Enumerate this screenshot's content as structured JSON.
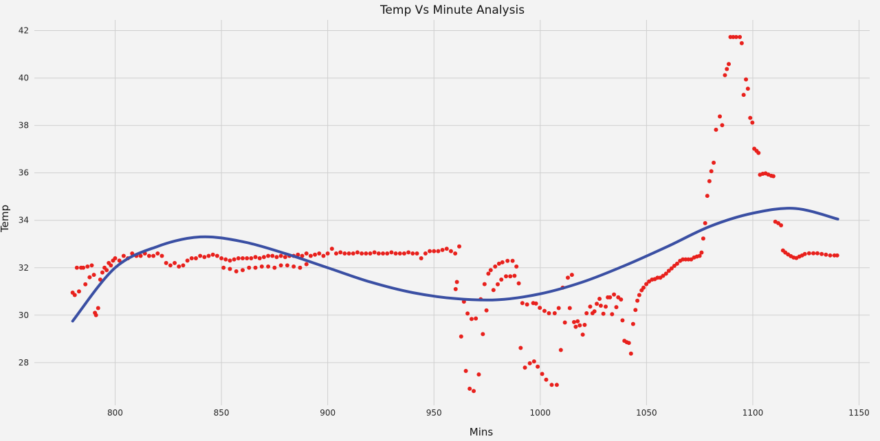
{
  "chart_data": {
    "type": "scatter",
    "title": "Temp Vs Minute Analysis",
    "xlabel": "Mins",
    "ylabel": "Temp",
    "xlim": [
      762,
      1155
    ],
    "ylim": [
      26.2,
      42.45
    ],
    "xticks": [
      800,
      850,
      900,
      950,
      1000,
      1050,
      1100,
      1150
    ],
    "yticks": [
      28,
      30,
      32,
      34,
      36,
      38,
      40,
      42
    ],
    "grid": true,
    "background": "#f3f3f3",
    "series": [
      {
        "kind": "scatter",
        "color": "#e8201c",
        "x": [
          780,
          781,
          782,
          783,
          784,
          785,
          786,
          787,
          788,
          789,
          790,
          790.5,
          791,
          792,
          793,
          794,
          795,
          796,
          797,
          798,
          799,
          800,
          802,
          804,
          806,
          808,
          810,
          812,
          814,
          816,
          818,
          820,
          822,
          824,
          826,
          828,
          830,
          832,
          834,
          836,
          838,
          840,
          842,
          844,
          846,
          848,
          850,
          852,
          854,
          856,
          858,
          860,
          862,
          864,
          866,
          868,
          870,
          872,
          874,
          876,
          878,
          880,
          882,
          884,
          886,
          888,
          890,
          851,
          854,
          857,
          860,
          863,
          866,
          869,
          872,
          875,
          878,
          881,
          884,
          887,
          890,
          892,
          894,
          896,
          898,
          900,
          902,
          904,
          906,
          908,
          910,
          912,
          914,
          916,
          918,
          920,
          922,
          924,
          926,
          928,
          930,
          932,
          934,
          936,
          938,
          940,
          942,
          944,
          946,
          948,
          950,
          952,
          954,
          956,
          958,
          960,
          960.2,
          960.8,
          961.9,
          962.8,
          964.1,
          965,
          965.8,
          966.8,
          967.7,
          968.7,
          969.7,
          971.1,
          972,
          973,
          973.8,
          974.7,
          975.6,
          976.7,
          978,
          978.8,
          980,
          980.6,
          981.7,
          982.2,
          983.9,
          984.6,
          985.9,
          987,
          987.9,
          988.8,
          989.9,
          990.8,
          991.6,
          992.8,
          993.8,
          995.1,
          996.7,
          997.1,
          998,
          998.8,
          999.8,
          1000.9,
          1002,
          1002.8,
          1004.1,
          1005.4,
          1006.8,
          1007.8,
          1008.7,
          1009.7,
          1010.6,
          1011.6,
          1013,
          1013.9,
          1014.9,
          1015.9,
          1016.7,
          1017.6,
          1018.6,
          1020,
          1020.9,
          1021.8,
          1023.5,
          1024.6,
          1025.5,
          1026.6,
          1027.9,
          1028.5,
          1029.7,
          1030.8,
          1031.8,
          1032.8,
          1033.8,
          1034.7,
          1035.8,
          1036.7,
          1038,
          1038.7,
          1039.6,
          1040.7,
          1041.7,
          1042.7,
          1043.7,
          1044.8,
          1045.7,
          1046.6,
          1047.7,
          1048.6,
          1049.9,
          1051.2,
          1052.6,
          1053.9,
          1055.2,
          1056.5,
          1057.8,
          1059.2,
          1060.5,
          1061.8,
          1063.1,
          1064.4,
          1065.8,
          1067.1,
          1068.4,
          1069.7,
          1071,
          1072.4,
          1073.7,
          1075,
          1075.9,
          1076.7,
          1077.6,
          1078.6,
          1079.6,
          1080.5,
          1081.6,
          1082.7,
          1084.5,
          1085.6,
          1086.9,
          1087.8,
          1088.7,
          1089.5,
          1090.8,
          1092.2,
          1093.9,
          1094.8,
          1095.7,
          1096.8,
          1097.7,
          1098.8,
          1099.8,
          1100.7,
          1101.8,
          1102.7,
          1103.4,
          1104.7,
          1106,
          1107.3,
          1108.7,
          1109.7,
          1110.6,
          1112,
          1113.3,
          1114.2,
          1115.3,
          1116.6,
          1117.9,
          1119.2,
          1120.5,
          1121.9,
          1123.2,
          1124.5,
          1126.5,
          1128.5,
          1130.4,
          1132.4,
          1134.4,
          1136.4,
          1138.4,
          1139.7
        ],
        "y": [
          30.95,
          30.85,
          32.0,
          31.0,
          32.0,
          32.0,
          31.3,
          32.05,
          31.6,
          32.1,
          31.7,
          30.1,
          30.0,
          30.3,
          31.5,
          31.8,
          32.0,
          31.9,
          32.2,
          32.1,
          32.3,
          32.4,
          32.3,
          32.5,
          32.4,
          32.6,
          32.5,
          32.5,
          32.6,
          32.5,
          32.5,
          32.6,
          32.5,
          32.2,
          32.1,
          32.2,
          32.05,
          32.1,
          32.3,
          32.4,
          32.4,
          32.5,
          32.45,
          32.5,
          32.55,
          32.5,
          32.4,
          32.35,
          32.3,
          32.35,
          32.4,
          32.4,
          32.4,
          32.4,
          32.45,
          32.4,
          32.45,
          32.5,
          32.5,
          32.45,
          32.5,
          32.45,
          32.5,
          32.5,
          32.55,
          32.5,
          32.6,
          32.0,
          31.95,
          31.85,
          31.9,
          32.0,
          32.0,
          32.05,
          32.05,
          32.0,
          32.1,
          32.1,
          32.05,
          32.0,
          32.15,
          32.5,
          32.55,
          32.6,
          32.5,
          32.6,
          32.8,
          32.6,
          32.65,
          32.6,
          32.6,
          32.6,
          32.65,
          32.6,
          32.6,
          32.6,
          32.65,
          32.6,
          32.6,
          32.6,
          32.65,
          32.6,
          32.6,
          32.6,
          32.65,
          32.6,
          32.6,
          32.4,
          32.6,
          32.7,
          32.7,
          32.7,
          32.75,
          32.8,
          32.7,
          32.6,
          31.1,
          31.4,
          32.9,
          29.1,
          30.57,
          27.65,
          30.07,
          26.9,
          29.84,
          26.8,
          29.86,
          27.5,
          30.67,
          29.2,
          31.31,
          30.2,
          31.75,
          31.9,
          31.06,
          32.05,
          31.3,
          32.17,
          31.5,
          32.23,
          31.64,
          32.29,
          31.64,
          32.29,
          31.66,
          32.05,
          31.34,
          28.62,
          30.51,
          27.79,
          30.45,
          27.97,
          30.51,
          28.05,
          30.49,
          27.83,
          30.31,
          27.52,
          30.18,
          27.28,
          30.08,
          27.06,
          30.08,
          27.06,
          30.3,
          28.53,
          31.16,
          29.69,
          31.58,
          30.3,
          31.7,
          29.71,
          29.51,
          29.74,
          29.57,
          29.18,
          29.59,
          30.08,
          30.36,
          30.08,
          30.16,
          30.48,
          30.69,
          30.4,
          30.06,
          30.36,
          30.75,
          30.75,
          30.04,
          30.87,
          30.34,
          30.75,
          30.66,
          29.78,
          28.92,
          28.86,
          28.83,
          28.38,
          29.63,
          30.22,
          30.61,
          30.85,
          31.05,
          31.16,
          31.31,
          31.42,
          31.5,
          31.52,
          31.58,
          31.58,
          31.66,
          31.75,
          31.87,
          31.97,
          32.08,
          32.17,
          32.29,
          32.35,
          32.35,
          32.35,
          32.35,
          32.43,
          32.47,
          32.5,
          32.64,
          33.23,
          33.88,
          35.03,
          35.65,
          36.07,
          36.43,
          37.82,
          38.38,
          38.01,
          40.12,
          40.38,
          40.59,
          41.73,
          41.73,
          41.73,
          41.73,
          41.47,
          39.29,
          39.94,
          39.55,
          38.32,
          38.12,
          37.02,
          36.93,
          36.84,
          35.92,
          35.96,
          35.98,
          35.93,
          35.88,
          35.86,
          33.94,
          33.88,
          33.79,
          32.73,
          32.64,
          32.56,
          32.49,
          32.43,
          32.41,
          32.47,
          32.52,
          32.58,
          32.61,
          32.61,
          32.61,
          32.58,
          32.55,
          32.52,
          32.52,
          32.52
        ]
      },
      {
        "kind": "line",
        "color": "#3a4fa3",
        "x": [
          780,
          800,
          820,
          840,
          860,
          880,
          900,
          920,
          940,
          960,
          980,
          1000,
          1020,
          1040,
          1060,
          1080,
          1100,
          1120,
          1140
        ],
        "y": [
          29.75,
          32.0,
          32.9,
          33.3,
          33.1,
          32.6,
          32.0,
          31.4,
          30.95,
          30.7,
          30.65,
          30.9,
          31.4,
          32.1,
          32.9,
          33.75,
          34.3,
          34.5,
          34.05
        ]
      }
    ]
  }
}
